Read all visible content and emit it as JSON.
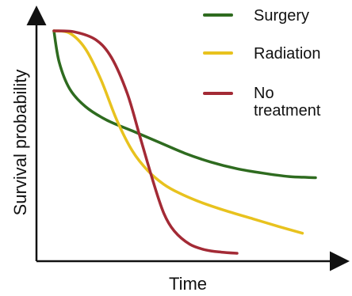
{
  "chart_data": {
    "type": "line",
    "title": "",
    "xlabel": "Time",
    "ylabel": "Survival probability",
    "x_tick_labels": false,
    "y_tick_labels": false,
    "grid": false,
    "legend_position": "top-right",
    "xlim": [
      0,
      1
    ],
    "ylim": [
      0,
      1
    ],
    "series": [
      {
        "name": "Surgery",
        "color": "#2e6b1f",
        "x": [
          0.0,
          0.02,
          0.06,
          0.12,
          0.2,
          0.3,
          0.4,
          0.5,
          0.6,
          0.7,
          0.8,
          0.9,
          1.0
        ],
        "y": [
          1.0,
          0.86,
          0.74,
          0.66,
          0.6,
          0.55,
          0.5,
          0.45,
          0.41,
          0.38,
          0.36,
          0.345,
          0.34
        ]
      },
      {
        "name": "Radiation",
        "color": "#e8c21e",
        "x": [
          0.0,
          0.06,
          0.12,
          0.18,
          0.24,
          0.3,
          0.36,
          0.42,
          0.48,
          0.56,
          0.66,
          0.76,
          0.86,
          0.95
        ],
        "y": [
          1.0,
          0.99,
          0.92,
          0.78,
          0.6,
          0.46,
          0.37,
          0.31,
          0.27,
          0.23,
          0.19,
          0.155,
          0.12,
          0.09
        ]
      },
      {
        "name": "No treatment",
        "color": "#a32a35",
        "x": [
          0.0,
          0.08,
          0.16,
          0.22,
          0.28,
          0.33,
          0.38,
          0.42,
          0.46,
          0.52,
          0.58,
          0.64,
          0.7
        ],
        "y": [
          1.0,
          0.995,
          0.96,
          0.88,
          0.72,
          0.52,
          0.32,
          0.18,
          0.1,
          0.04,
          0.015,
          0.005,
          0.0
        ]
      }
    ]
  }
}
